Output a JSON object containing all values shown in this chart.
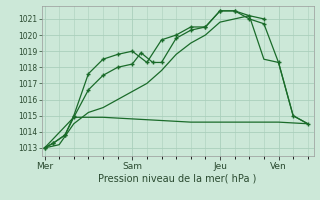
{
  "title": "",
  "xlabel": "Pression niveau de la mer( hPa )",
  "background_color": "#cce8d8",
  "grid_color": "#aacfbc",
  "line_color": "#1a6b2a",
  "ylim": [
    1012.5,
    1021.8
  ],
  "yticks": [
    1013,
    1014,
    1015,
    1016,
    1017,
    1018,
    1019,
    1020,
    1021
  ],
  "xtick_labels": [
    "Mer",
    "Sam",
    "Jeu",
    "Ven"
  ],
  "xtick_positions": [
    0,
    3,
    6,
    8
  ],
  "xlim": [
    -0.1,
    9.2
  ],
  "line1_x": [
    0,
    0.3,
    0.7,
    1.0,
    1.5,
    2.0,
    2.5,
    3.0,
    3.3,
    3.7,
    4.0,
    4.5,
    5.0,
    5.5,
    6.0,
    6.5,
    7.0,
    7.5
  ],
  "line1_y": [
    1013.0,
    1013.3,
    1013.8,
    1014.9,
    1016.6,
    1017.5,
    1018.0,
    1018.2,
    1018.9,
    1018.3,
    1018.3,
    1019.8,
    1020.3,
    1020.5,
    1021.5,
    1021.5,
    1021.2,
    1021.0
  ],
  "line2_x": [
    0,
    0.3,
    0.7,
    1.0,
    1.5,
    2.0,
    2.5,
    3.0,
    3.5,
    4.0,
    4.5,
    5.0,
    5.5,
    6.0,
    6.5,
    7.0,
    7.5,
    8.0,
    8.5,
    9.0
  ],
  "line2_y": [
    1013.0,
    1013.3,
    1013.8,
    1015.0,
    1017.6,
    1018.5,
    1018.8,
    1019.0,
    1018.3,
    1019.7,
    1020.0,
    1020.5,
    1020.5,
    1021.5,
    1021.5,
    1021.0,
    1020.7,
    1018.3,
    1015.0,
    1014.5
  ],
  "line3_x": [
    0,
    1.0,
    2.0,
    3.0,
    4.0,
    5.0,
    6.0,
    7.0,
    8.0,
    9.0
  ],
  "line3_y": [
    1013.0,
    1014.9,
    1014.9,
    1014.8,
    1014.7,
    1014.6,
    1014.6,
    1014.6,
    1014.6,
    1014.5
  ],
  "line4_x": [
    0,
    0.5,
    1.0,
    1.5,
    2.0,
    2.5,
    3.0,
    3.5,
    4.0,
    4.5,
    5.0,
    5.5,
    6.0,
    6.5,
    7.0,
    7.5,
    8.0,
    8.5,
    9.0
  ],
  "line4_y": [
    1013.0,
    1013.2,
    1014.5,
    1015.2,
    1015.5,
    1016.0,
    1016.5,
    1017.0,
    1017.8,
    1018.8,
    1019.5,
    1020.0,
    1020.8,
    1021.0,
    1021.2,
    1018.5,
    1018.3,
    1015.0,
    1014.5
  ],
  "ytick_fontsize": 5.5,
  "xtick_fontsize": 6.5,
  "xlabel_fontsize": 7.0,
  "tick_color": "#2a4a30"
}
